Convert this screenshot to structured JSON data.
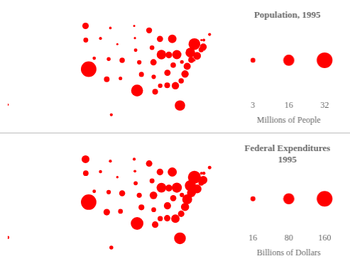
{
  "chart_data": [
    {
      "type": "bubble",
      "title": "Population, 1995",
      "x": [
        -86.8,
        -153.0,
        -111.9,
        -92.4,
        -119.4,
        -105.5,
        -72.7,
        -75.5,
        -81.5,
        -83.4,
        -110.0,
        -114.5,
        -89.2,
        -86.1,
        -93.1,
        -98.4,
        -84.3,
        -91.8,
        -69.2,
        -76.8,
        -71.8,
        -84.7,
        -94.3,
        -89.7,
        -92.5,
        -110.4,
        -99.9,
        -117.1,
        -71.6,
        -74.4,
        -106.2,
        -75.5,
        -79.4,
        -100.5,
        -82.8,
        -97.5,
        -120.6,
        -77.2,
        -71.5,
        -81.0,
        -100.2,
        -86.7,
        -99.3,
        -111.1,
        -72.6,
        -78.5,
        -120.7,
        -80.7,
        -89.8,
        -107.5
      ],
      "y": [
        32.8,
        28.0,
        34.3,
        34.9,
        36.8,
        39.0,
        41.6,
        39.0,
        27.8,
        32.7,
        25.5,
        44.4,
        40.4,
        40.3,
        42.1,
        38.5,
        37.8,
        31.2,
        45.4,
        39.1,
        42.3,
        44.3,
        46.4,
        32.7,
        38.5,
        47.0,
        41.5,
        39.5,
        44.0,
        40.1,
        34.5,
        43.0,
        35.6,
        47.5,
        40.4,
        35.5,
        44.0,
        40.9,
        41.7,
        33.9,
        44.5,
        35.9,
        31.5,
        39.3,
        44.0,
        37.5,
        47.5,
        38.6,
        44.3,
        43.0
      ],
      "sizes": [
        4.3,
        0.6,
        4.2,
        2.5,
        31.6,
        3.7,
        3.3,
        0.7,
        14.2,
        7.2,
        1.2,
        1.2,
        11.8,
        5.8,
        2.8,
        2.6,
        3.9,
        4.3,
        1.2,
        5.0,
        6.1,
        9.5,
        4.6,
        2.7,
        5.3,
        0.9,
        1.6,
        1.5,
        1.1,
        7.9,
        1.7,
        18.1,
        7.2,
        0.6,
        11.2,
        3.3,
        3.1,
        12.1,
        1.0,
        3.7,
        0.7,
        5.3,
        18.7,
        2.0,
        0.6,
        6.6,
        5.4,
        1.8,
        5.1,
        0.5
      ],
      "size_legend": {
        "label": "Millions of People",
        "values": [
          3,
          16,
          32
        ]
      },
      "xlim": [
        -153,
        -65
      ],
      "ylim": [
        23,
        52
      ],
      "tick_labels": false,
      "grid": false,
      "color": "red"
    },
    {
      "type": "bubble",
      "title": "Federal Expenditures\n1995",
      "x": [
        -86.8,
        -153.0,
        -111.9,
        -92.4,
        -119.4,
        -105.5,
        -72.7,
        -75.5,
        -81.5,
        -83.4,
        -110.0,
        -114.5,
        -89.2,
        -86.1,
        -93.1,
        -98.4,
        -84.3,
        -91.8,
        -69.2,
        -76.8,
        -71.8,
        -84.7,
        -94.3,
        -89.7,
        -92.5,
        -110.4,
        -99.9,
        -117.1,
        -71.6,
        -74.4,
        -106.2,
        -75.5,
        -79.4,
        -100.5,
        -82.8,
        -97.5,
        -120.6,
        -77.2,
        -71.5,
        -81.0,
        -100.2,
        -86.7,
        -99.3,
        -111.1,
        -72.6,
        -78.5,
        -120.7,
        -80.7,
        -89.8,
        -107.5
      ],
      "y": [
        32.8,
        28.0,
        34.3,
        34.9,
        36.8,
        39.0,
        41.6,
        39.0,
        27.8,
        32.7,
        25.5,
        44.4,
        40.4,
        40.3,
        42.1,
        38.5,
        37.8,
        31.2,
        45.4,
        39.1,
        42.3,
        44.3,
        46.4,
        32.7,
        38.5,
        47.0,
        41.5,
        39.5,
        44.0,
        40.1,
        34.5,
        43.0,
        35.6,
        47.5,
        40.4,
        35.5,
        44.0,
        40.9,
        41.7,
        33.9,
        44.5,
        35.9,
        31.5,
        39.3,
        44.0,
        37.5,
        47.5,
        38.6,
        44.3,
        43.0
      ],
      "sizes": [
        27.0,
        7.0,
        28.0,
        15.0,
        157.0,
        24.0,
        20.0,
        5.0,
        90.0,
        47.0,
        10.0,
        7.0,
        62.0,
        31.0,
        16.0,
        17.0,
        25.0,
        28.0,
        8.0,
        48.0,
        43.0,
        55.0,
        27.0,
        18.0,
        38.0,
        6.0,
        11.0,
        8.0,
        7.0,
        51.0,
        15.0,
        111.0,
        44.0,
        6.0,
        67.0,
        22.0,
        20.0,
        80.0,
        7.0,
        27.0,
        5.0,
        34.0,
        105.0,
        13.0,
        5.0,
        65.0,
        40.0,
        13.0,
        29.0,
        4.0
      ],
      "size_legend": {
        "label": "Billions of Dollars",
        "values": [
          16,
          80,
          160
        ]
      },
      "xlim": [
        -153,
        -65
      ],
      "ylim": [
        23,
        52
      ],
      "tick_labels": false,
      "grid": false,
      "color": "red"
    }
  ]
}
